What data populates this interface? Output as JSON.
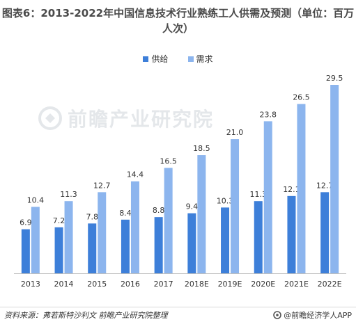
{
  "title": "图表6：2013-2022年中国信息技术行业熟练工人供需及预测（单位：百万人次）",
  "legend": {
    "supply": "供给",
    "demand": "需求"
  },
  "colors": {
    "supply": "#3d7fd9",
    "demand": "#8cb5ee",
    "axis": "#bfbfbf",
    "label": "#333333"
  },
  "chart_data": {
    "type": "bar",
    "categories": [
      "2013",
      "2014",
      "2015",
      "2016",
      "2017",
      "2018E",
      "2019E",
      "2020E",
      "2021E",
      "2022E"
    ],
    "series": [
      {
        "name": "供给",
        "values": [
          6.9,
          7.2,
          7.8,
          8.4,
          8.8,
          9.4,
          10.3,
          11.3,
          12.1,
          12.7
        ]
      },
      {
        "name": "需求",
        "values": [
          10.4,
          11.3,
          12.7,
          14.4,
          16.5,
          18.5,
          21.0,
          23.8,
          26.5,
          29.5
        ]
      }
    ],
    "value_labels": {
      "供给": [
        "6.9",
        "7.2",
        "7.8",
        "8.4",
        "8.8",
        "9.4",
        "10.3",
        "11.3",
        "12.1",
        "12.7"
      ],
      "需求": [
        "10.4",
        "11.3",
        "12.7",
        "14.4",
        "16.5",
        "18.5",
        "21.0",
        "23.8",
        "26.5",
        "29.5"
      ]
    },
    "ylim": [
      0,
      29.5
    ],
    "grid": false,
    "legend_position": "top-center"
  },
  "watermark": "前瞻产业研究院",
  "footer": {
    "source": "资料来源：弗若斯特沙利文 前瞻产业研究院整理",
    "brand": "@前瞻经济学人APP"
  }
}
